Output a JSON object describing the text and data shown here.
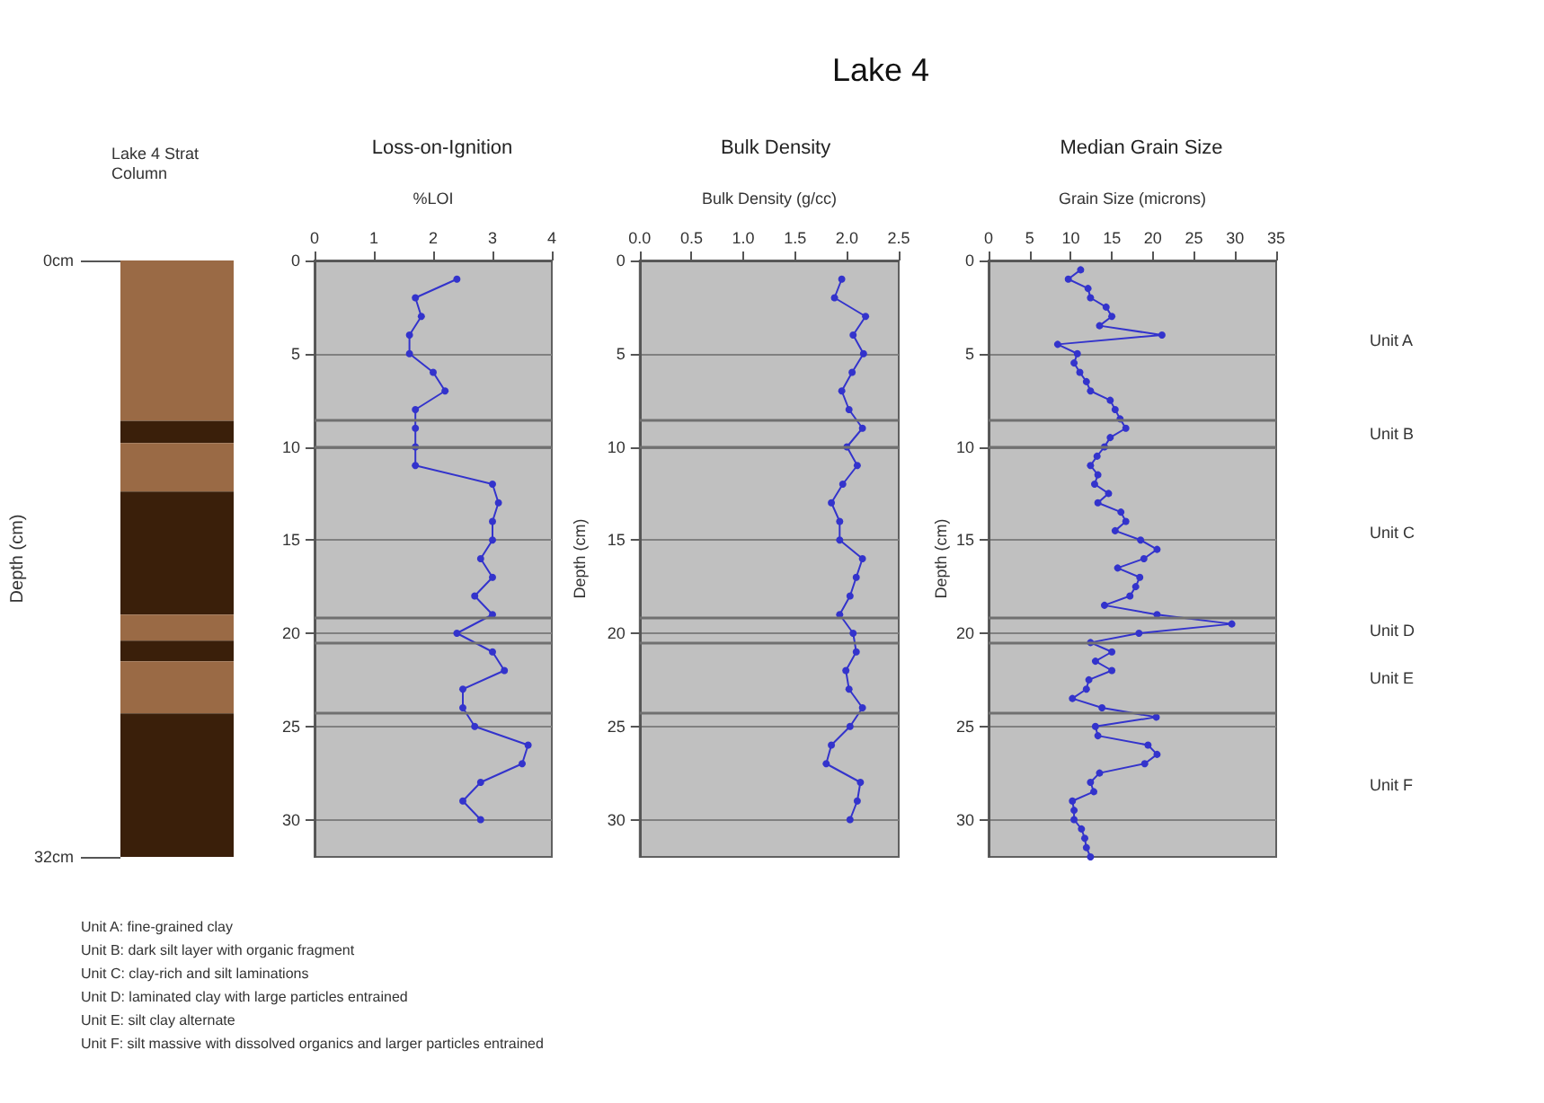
{
  "chart_data": [
    {
      "type": "bar",
      "stacked": true,
      "subtitle": "Lake 4 Strat Column",
      "ylabel": "Depth (cm)",
      "categories": [
        null
      ],
      "tick_labels": "y",
      "ylim": [
        32,
        0
      ],
      "yticks": [
        {
          "value": 0,
          "label": "0cm"
        },
        {
          "value": 32,
          "label": "32cm"
        }
      ],
      "series": [
        {
          "color": "#9a6a45",
          "values": [
            8.6
          ]
        },
        {
          "color": "#3a1f0a",
          "values": [
            1.2
          ]
        },
        {
          "color": "#9a6a45",
          "values": [
            2.6
          ]
        },
        {
          "color": "#3a1f0a",
          "values": [
            6.6
          ]
        },
        {
          "color": "#9a6a45",
          "values": [
            1.4
          ]
        },
        {
          "color": "#3a1f0a",
          "values": [
            1.1
          ]
        },
        {
          "color": "#9a6a45",
          "values": [
            2.8
          ]
        },
        {
          "color": "#3a1f0a",
          "values": [
            7.7
          ]
        }
      ],
      "annotations": [
        "Lake 4",
        "Unit A: fine-grained clay",
        "Unit B: dark silt layer with organic fragment",
        "Unit C: clay-rich and silt laminations",
        "Unit D: laminated clay with large particles entrained",
        "Unit E: silt clay alternate",
        "Unit F: silt massive with dissolved organics and larger particles entrained"
      ]
    },
    {
      "type": "line",
      "orientation": "horizontal",
      "title": "Loss-on-Ignition",
      "xlabel": "%LOI",
      "marker": "circle",
      "color": "#3333cc",
      "grid": "y",
      "xlim": [
        0,
        4
      ],
      "xticks": [
        0,
        1,
        2,
        3,
        4
      ],
      "ylim": [
        32,
        0
      ],
      "yticks": [
        0,
        5,
        10,
        15,
        20,
        25,
        30
      ],
      "x": [
        1,
        2,
        3,
        4,
        5,
        6,
        7,
        8,
        9,
        10,
        11,
        12,
        13,
        14,
        15,
        16,
        17,
        18,
        19,
        20,
        21,
        22,
        23,
        24,
        25,
        26,
        27,
        28,
        29,
        30
      ],
      "values": [
        2.4,
        1.7,
        1.8,
        1.6,
        1.6,
        2.0,
        2.2,
        1.7,
        1.7,
        1.7,
        1.7,
        3.0,
        3.1,
        3.0,
        3.0,
        2.8,
        3.0,
        2.7,
        3.0,
        2.4,
        3.0,
        3.2,
        2.5,
        2.5,
        2.7,
        3.6,
        3.5,
        2.8,
        2.5,
        2.8
      ],
      "ref_lines": [
        {
          "axis": "y",
          "value": 8.6
        },
        {
          "axis": "y",
          "value": 10
        },
        {
          "axis": "y",
          "value": 19.2
        },
        {
          "axis": "y",
          "value": 20.5
        },
        {
          "axis": "y",
          "value": 24.3
        }
      ]
    },
    {
      "type": "line",
      "orientation": "horizontal",
      "title": "Bulk Density",
      "xlabel": "Bulk Density (g/cc)",
      "ylabel": "Depth (cm)",
      "marker": "circle",
      "color": "#3333cc",
      "grid": "y",
      "xlim": [
        0,
        2.5
      ],
      "xticks": [
        {
          "value": 0,
          "label": "0.0"
        },
        0.5,
        {
          "value": 1,
          "label": "1.0"
        },
        1.5,
        {
          "value": 2,
          "label": "2.0"
        },
        2.5
      ],
      "ylim": [
        32,
        0
      ],
      "yticks": [
        0,
        5,
        10,
        15,
        20,
        25,
        30
      ],
      "x": [
        1,
        2,
        3,
        4,
        5,
        6,
        7,
        8,
        9,
        10,
        11,
        12,
        13,
        14,
        15,
        16,
        17,
        18,
        19,
        20,
        21,
        22,
        23,
        24,
        25,
        26,
        27,
        28,
        29,
        30
      ],
      "values": [
        1.95,
        1.88,
        2.18,
        2.06,
        2.16,
        2.05,
        1.95,
        2.02,
        2.15,
        2.0,
        2.1,
        1.96,
        1.85,
        1.93,
        1.93,
        2.15,
        2.09,
        2.03,
        1.93,
        2.06,
        2.09,
        1.99,
        2.02,
        2.15,
        2.03,
        1.85,
        1.8,
        2.13,
        2.1,
        2.03
      ],
      "ref_lines": [
        {
          "axis": "y",
          "value": 8.6
        },
        {
          "axis": "y",
          "value": 10
        },
        {
          "axis": "y",
          "value": 19.2
        },
        {
          "axis": "y",
          "value": 20.5
        },
        {
          "axis": "y",
          "value": 24.3
        }
      ]
    },
    {
      "type": "line",
      "orientation": "horizontal",
      "title": "Median Grain Size",
      "xlabel": "Grain Size (microns)",
      "ylabel": "Depth (cm)",
      "marker": "circle",
      "color": "#3333cc",
      "grid": "y",
      "xlim": [
        0,
        35
      ],
      "xticks": [
        0,
        5,
        10,
        15,
        20,
        25,
        30,
        35
      ],
      "ylim": [
        32,
        0
      ],
      "yticks": [
        0,
        5,
        10,
        15,
        20,
        25,
        30
      ],
      "x": [
        0.5,
        1,
        1.5,
        2,
        2.5,
        3,
        3.5,
        4,
        4.5,
        5,
        5.5,
        6,
        6.5,
        7,
        7.5,
        8,
        8.5,
        9,
        9.5,
        10,
        10.5,
        11,
        11.5,
        12,
        12.5,
        13,
        13.5,
        14,
        14.5,
        15,
        15.5,
        16,
        16.5,
        17,
        17.5,
        18,
        18.5,
        19,
        19.5,
        20,
        20.5,
        21,
        21.5,
        22,
        22.5,
        23,
        23.5,
        24,
        24.5,
        25,
        25.5,
        26,
        26.5,
        27,
        27.5,
        28,
        28.5,
        29,
        29.5,
        30,
        30.5,
        31,
        31.5,
        32
      ],
      "values": [
        11.2,
        9.7,
        12.1,
        12.4,
        14.3,
        15.0,
        13.5,
        21.1,
        8.4,
        10.8,
        10.4,
        11.1,
        11.9,
        12.4,
        14.8,
        15.4,
        16.0,
        16.7,
        14.8,
        14.1,
        13.2,
        12.4,
        13.3,
        12.9,
        14.6,
        13.3,
        16.1,
        16.7,
        15.4,
        18.5,
        20.5,
        18.9,
        15.7,
        18.4,
        17.9,
        17.2,
        14.1,
        20.5,
        29.6,
        18.3,
        12.4,
        15.0,
        13.0,
        15.0,
        12.2,
        11.9,
        10.2,
        13.8,
        20.4,
        13.0,
        13.3,
        19.4,
        20.5,
        19.0,
        13.5,
        12.4,
        12.8,
        10.2,
        10.4,
        10.4,
        11.3,
        11.7,
        11.9,
        12.4
      ],
      "ref_lines": [
        {
          "axis": "y",
          "value": 8.6
        },
        {
          "axis": "y",
          "value": 10
        },
        {
          "axis": "y",
          "value": 19.2
        },
        {
          "axis": "y",
          "value": 20.5
        },
        {
          "axis": "y",
          "value": 24.3
        }
      ],
      "annotations": [
        "Unit A",
        "Unit B",
        "Unit C",
        "Unit D",
        "Unit E",
        "Unit F"
      ]
    }
  ]
}
